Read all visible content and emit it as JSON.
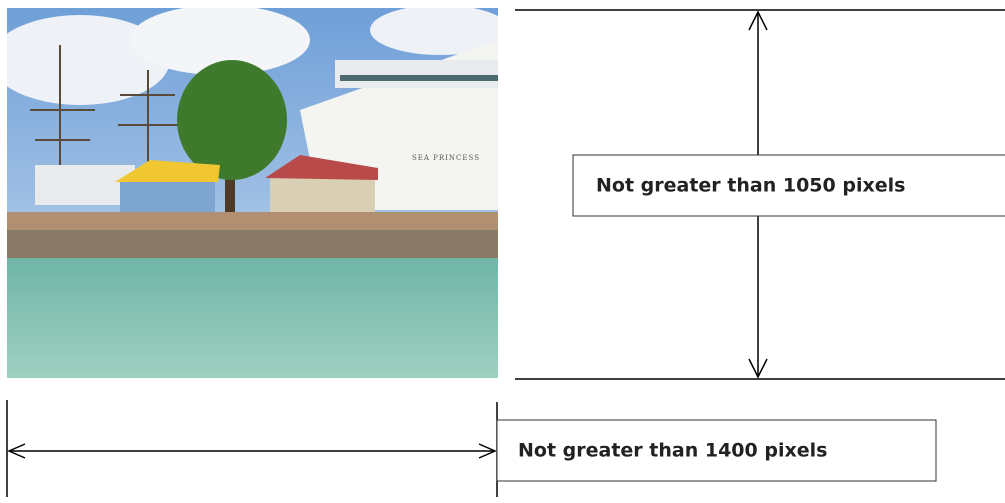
{
  "photo": {
    "ship_name": "SEA PRINCESS"
  },
  "height_label": "Not greater than 1050 pixels",
  "width_label": "Not greater than 1400 pixels"
}
